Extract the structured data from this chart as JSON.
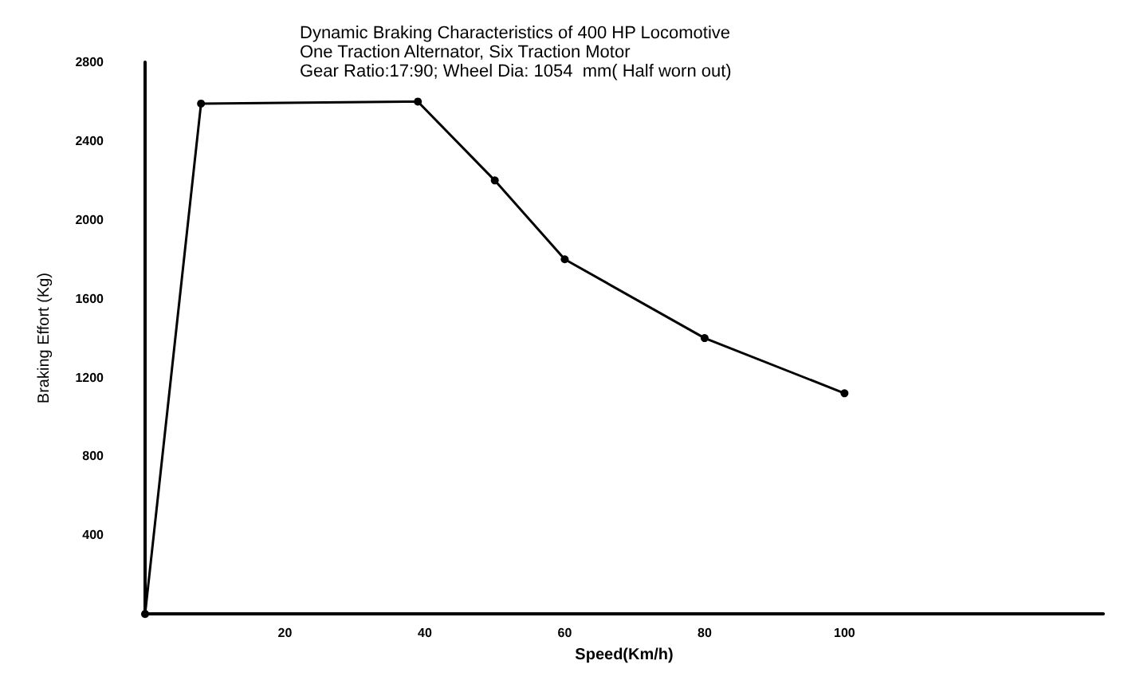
{
  "chart_data": {
    "type": "line",
    "title": "Dynamic Braking Characteristics of 400 HP Locomotive\nOne Traction Alternator, Six Traction Motor\nGear Ratio:17:90; Wheel Dia: 1054  mm( Half worn out)",
    "xlabel": "Speed(Km/h)",
    "ylabel": "Braking Effort (Kg)",
    "x": [
      0,
      8,
      39,
      50,
      60,
      80,
      100
    ],
    "series": [
      {
        "color": "#000000",
        "values": [
          0,
          2590,
          2600,
          2200,
          1800,
          1400,
          1120
        ]
      }
    ],
    "xlim": [
      0,
      137
    ],
    "xticks": [
      20,
      40,
      60,
      80,
      100
    ],
    "ylim": [
      0,
      2800
    ],
    "yticks": [
      400,
      800,
      1200,
      1600,
      2000,
      2400,
      2800
    ],
    "grid": false,
    "marker": "circle",
    "line_style": "solid"
  }
}
